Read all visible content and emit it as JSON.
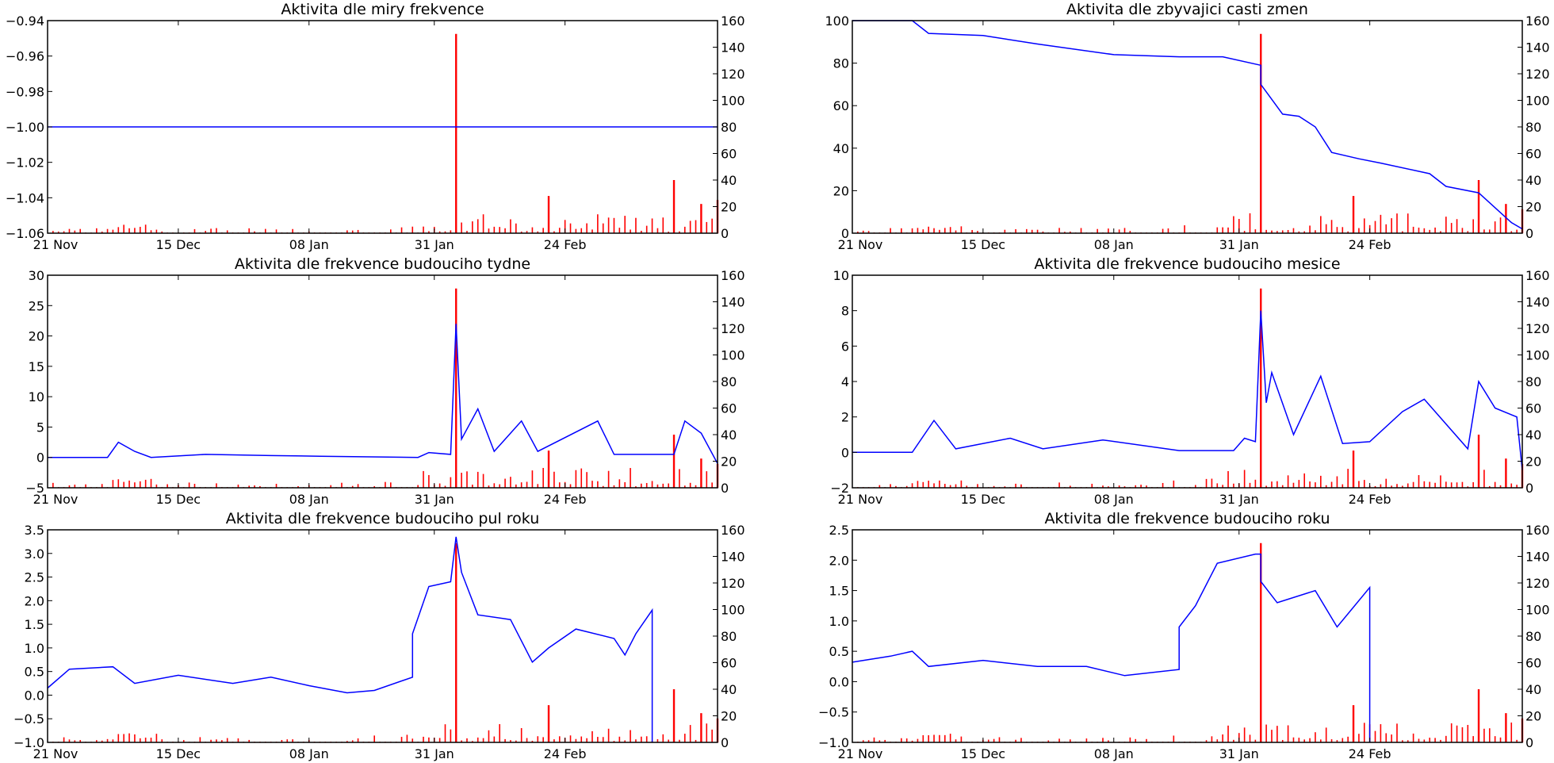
{
  "figure": {
    "x_ticks": [
      "21 Nov",
      "15 Dec",
      "08 Jan",
      "31 Jan",
      "24 Feb"
    ],
    "right_ticks": [
      "0",
      "20",
      "40",
      "60",
      "80",
      "100",
      "120",
      "140",
      "160"
    ]
  },
  "colors": {
    "line": "#0000ff",
    "bars": "#ff0000"
  },
  "chart_data": [
    {
      "type": "line",
      "title": "Aktivita dle miry frekvence",
      "x_axis": {
        "type": "date",
        "start": "2015-11-21",
        "end": "2016-03-23"
      },
      "ylim": [
        -1.06,
        -0.94
      ],
      "yticks": [
        "−0.94",
        "−0.96",
        "−0.98",
        "−1.00",
        "−1.02",
        "−1.04",
        "−1.06"
      ],
      "ylim_right": [
        0,
        160
      ],
      "series": [
        {
          "axis": "left",
          "color": "#0000ff",
          "points": [
            [
              "2015-11-21",
              -1.0
            ],
            [
              "2016-03-23",
              -1.0
            ]
          ]
        },
        {
          "axis": "right",
          "kind": "bar",
          "color": "#ff0000",
          "peaks": [
            [
              "2016-02-04",
              150
            ],
            [
              "2016-02-21",
              28
            ],
            [
              "2016-03-15",
              40
            ],
            [
              "2016-03-20",
              22
            ],
            [
              "2016-03-23",
              25
            ]
          ]
        }
      ]
    },
    {
      "type": "line",
      "title": "Aktivita dle zbyvajici casti zmen",
      "x_axis": {
        "type": "date",
        "start": "2015-11-21",
        "end": "2016-03-23"
      },
      "ylim": [
        0,
        100
      ],
      "yticks": [
        "100",
        "80",
        "60",
        "40",
        "20",
        "0"
      ],
      "ylim_right": [
        0,
        160
      ],
      "series": [
        {
          "axis": "left",
          "color": "#0000ff",
          "points": [
            [
              "2015-11-21",
              100
            ],
            [
              "2015-12-02",
              100
            ],
            [
              "2015-12-05",
              94
            ],
            [
              "2015-12-15",
              93
            ],
            [
              "2015-12-25",
              89
            ],
            [
              "2016-01-08",
              84
            ],
            [
              "2016-01-20",
              83
            ],
            [
              "2016-01-28",
              83
            ],
            [
              "2016-02-04",
              79
            ],
            [
              "2016-02-04",
              70
            ],
            [
              "2016-02-08",
              56
            ],
            [
              "2016-02-11",
              55
            ],
            [
              "2016-02-14",
              50
            ],
            [
              "2016-02-17",
              38
            ],
            [
              "2016-02-22",
              35
            ],
            [
              "2016-02-26",
              33
            ],
            [
              "2016-03-06",
              28
            ],
            [
              "2016-03-09",
              22
            ],
            [
              "2016-03-15",
              19
            ],
            [
              "2016-03-21",
              5
            ],
            [
              "2016-03-23",
              2
            ]
          ]
        },
        {
          "axis": "right",
          "kind": "bar",
          "color": "#ff0000",
          "peaks": [
            [
              "2016-02-04",
              150
            ],
            [
              "2016-02-21",
              28
            ],
            [
              "2016-03-15",
              40
            ],
            [
              "2016-03-20",
              22
            ],
            [
              "2016-03-23",
              18
            ]
          ]
        }
      ]
    },
    {
      "type": "line",
      "title": "Aktivita dle frekvence budouciho tydne",
      "x_axis": {
        "type": "date",
        "start": "2015-11-21",
        "end": "2016-03-23"
      },
      "ylim": [
        -5,
        30
      ],
      "yticks": [
        "30",
        "25",
        "20",
        "15",
        "10",
        "5",
        "0",
        "−5"
      ],
      "ylim_right": [
        0,
        160
      ],
      "series": [
        {
          "axis": "left",
          "color": "#0000ff",
          "points": [
            [
              "2015-11-21",
              0
            ],
            [
              "2015-12-02",
              0
            ],
            [
              "2015-12-04",
              2.5
            ],
            [
              "2015-12-07",
              1
            ],
            [
              "2015-12-10",
              0
            ],
            [
              "2015-12-20",
              0.5
            ],
            [
              "2016-01-01",
              0.3
            ],
            [
              "2016-01-10",
              0.2
            ],
            [
              "2016-01-28",
              0
            ],
            [
              "2016-01-30",
              0.8
            ],
            [
              "2016-02-03",
              0.5
            ],
            [
              "2016-02-04",
              22
            ],
            [
              "2016-02-05",
              3
            ],
            [
              "2016-02-08",
              8
            ],
            [
              "2016-02-11",
              1
            ],
            [
              "2016-02-16",
              6
            ],
            [
              "2016-02-19",
              1
            ],
            [
              "2016-03-01",
              6
            ],
            [
              "2016-03-04",
              0.5
            ],
            [
              "2016-03-15",
              0.5
            ],
            [
              "2016-03-17",
              6
            ],
            [
              "2016-03-20",
              4
            ],
            [
              "2016-03-23",
              -1
            ]
          ]
        },
        {
          "axis": "right",
          "kind": "bar",
          "color": "#ff0000",
          "peaks": [
            [
              "2016-02-04",
              150
            ],
            [
              "2016-02-21",
              28
            ],
            [
              "2016-03-15",
              40
            ],
            [
              "2016-03-20",
              22
            ],
            [
              "2016-03-23",
              18
            ]
          ]
        }
      ]
    },
    {
      "type": "line",
      "title": "Aktivita dle frekvence budouciho mesice",
      "x_axis": {
        "type": "date",
        "start": "2015-11-21",
        "end": "2016-03-23"
      },
      "ylim": [
        -2,
        10
      ],
      "yticks": [
        "10",
        "8",
        "6",
        "4",
        "2",
        "0",
        "−2"
      ],
      "ylim_right": [
        0,
        160
      ],
      "series": [
        {
          "axis": "left",
          "color": "#0000ff",
          "points": [
            [
              "2015-11-21",
              0
            ],
            [
              "2015-12-02",
              0
            ],
            [
              "2015-12-06",
              1.8
            ],
            [
              "2015-12-10",
              0.2
            ],
            [
              "2015-12-20",
              0.8
            ],
            [
              "2015-12-26",
              0.2
            ],
            [
              "2016-01-06",
              0.7
            ],
            [
              "2016-01-20",
              0.1
            ],
            [
              "2016-01-30",
              0.1
            ],
            [
              "2016-02-01",
              0.8
            ],
            [
              "2016-02-03",
              0.6
            ],
            [
              "2016-02-04",
              8
            ],
            [
              "2016-02-05",
              2.8
            ],
            [
              "2016-02-06",
              4.5
            ],
            [
              "2016-02-10",
              1
            ],
            [
              "2016-02-15",
              4.3
            ],
            [
              "2016-02-19",
              0.5
            ],
            [
              "2016-02-24",
              0.6
            ],
            [
              "2016-03-01",
              2.3
            ],
            [
              "2016-03-05",
              3
            ],
            [
              "2016-03-13",
              0.2
            ],
            [
              "2016-03-15",
              4
            ],
            [
              "2016-03-18",
              2.5
            ],
            [
              "2016-03-22",
              2
            ],
            [
              "2016-03-23",
              -1
            ]
          ]
        },
        {
          "axis": "right",
          "kind": "bar",
          "color": "#ff0000",
          "peaks": [
            [
              "2016-02-04",
              150
            ],
            [
              "2016-02-21",
              28
            ],
            [
              "2016-03-15",
              40
            ],
            [
              "2016-03-20",
              22
            ],
            [
              "2016-03-23",
              18
            ]
          ]
        }
      ]
    },
    {
      "type": "line",
      "title": "Aktivita dle frekvence budouciho pul roku",
      "x_axis": {
        "type": "date",
        "start": "2015-11-21",
        "end": "2016-03-23"
      },
      "ylim": [
        -1.0,
        3.5
      ],
      "yticks": [
        "3.5",
        "3.0",
        "2.5",
        "2.0",
        "1.5",
        "1.0",
        "0.5",
        "0.0",
        "−0.5",
        "−1.0"
      ],
      "ylim_right": [
        0,
        160
      ],
      "series": [
        {
          "axis": "left",
          "color": "#0000ff",
          "points": [
            [
              "2015-11-21",
              0.15
            ],
            [
              "2015-11-25",
              0.55
            ],
            [
              "2015-12-03",
              0.6
            ],
            [
              "2015-12-07",
              0.25
            ],
            [
              "2015-12-15",
              0.42
            ],
            [
              "2015-12-25",
              0.25
            ],
            [
              "2016-01-01",
              0.38
            ],
            [
              "2016-01-08",
              0.2
            ],
            [
              "2016-01-15",
              0.05
            ],
            [
              "2016-01-20",
              0.1
            ],
            [
              "2016-01-27",
              0.38
            ],
            [
              "2016-01-27",
              1.3
            ],
            [
              "2016-01-30",
              2.3
            ],
            [
              "2016-02-03",
              2.4
            ],
            [
              "2016-02-04",
              3.35
            ],
            [
              "2016-02-05",
              2.6
            ],
            [
              "2016-02-08",
              1.7
            ],
            [
              "2016-02-14",
              1.6
            ],
            [
              "2016-02-18",
              0.7
            ],
            [
              "2016-02-21",
              1.0
            ],
            [
              "2016-02-26",
              1.4
            ],
            [
              "2016-03-04",
              1.2
            ],
            [
              "2016-03-06",
              0.85
            ],
            [
              "2016-03-08",
              1.3
            ],
            [
              "2016-03-11",
              1.8
            ],
            [
              "2016-03-11",
              -1.0
            ]
          ]
        },
        {
          "axis": "right",
          "kind": "bar",
          "color": "#ff0000",
          "peaks": [
            [
              "2016-02-04",
              150
            ],
            [
              "2016-02-21",
              28
            ],
            [
              "2016-03-15",
              40
            ],
            [
              "2016-03-20",
              22
            ],
            [
              "2016-03-23",
              18
            ]
          ]
        }
      ]
    },
    {
      "type": "line",
      "title": "Aktivita dle frekvence budouciho roku",
      "x_axis": {
        "type": "date",
        "start": "2015-11-21",
        "end": "2016-03-23"
      },
      "ylim": [
        -1.0,
        2.5
      ],
      "yticks": [
        "2.5",
        "2.0",
        "1.5",
        "1.0",
        "0.5",
        "0.0",
        "−0.5",
        "−1.0"
      ],
      "ylim_right": [
        0,
        160
      ],
      "series": [
        {
          "axis": "left",
          "color": "#0000ff",
          "points": [
            [
              "2015-11-21",
              0.32
            ],
            [
              "2015-11-28",
              0.42
            ],
            [
              "2015-12-02",
              0.5
            ],
            [
              "2015-12-05",
              0.25
            ],
            [
              "2015-12-15",
              0.35
            ],
            [
              "2015-12-25",
              0.25
            ],
            [
              "2016-01-03",
              0.25
            ],
            [
              "2016-01-10",
              0.1
            ],
            [
              "2016-01-20",
              0.2
            ],
            [
              "2016-01-20",
              0.9
            ],
            [
              "2016-01-23",
              1.25
            ],
            [
              "2016-01-27",
              1.95
            ],
            [
              "2016-02-03",
              2.1
            ],
            [
              "2016-02-04",
              2.1
            ],
            [
              "2016-02-04",
              1.65
            ],
            [
              "2016-02-07",
              1.3
            ],
            [
              "2016-02-14",
              1.5
            ],
            [
              "2016-02-18",
              0.9
            ],
            [
              "2016-02-24",
              1.55
            ],
            [
              "2016-02-24",
              -1.0
            ]
          ]
        },
        {
          "axis": "right",
          "kind": "bar",
          "color": "#ff0000",
          "peaks": [
            [
              "2016-02-04",
              150
            ],
            [
              "2016-02-21",
              28
            ],
            [
              "2016-03-15",
              40
            ],
            [
              "2016-03-20",
              22
            ],
            [
              "2016-03-23",
              18
            ]
          ]
        }
      ]
    }
  ]
}
